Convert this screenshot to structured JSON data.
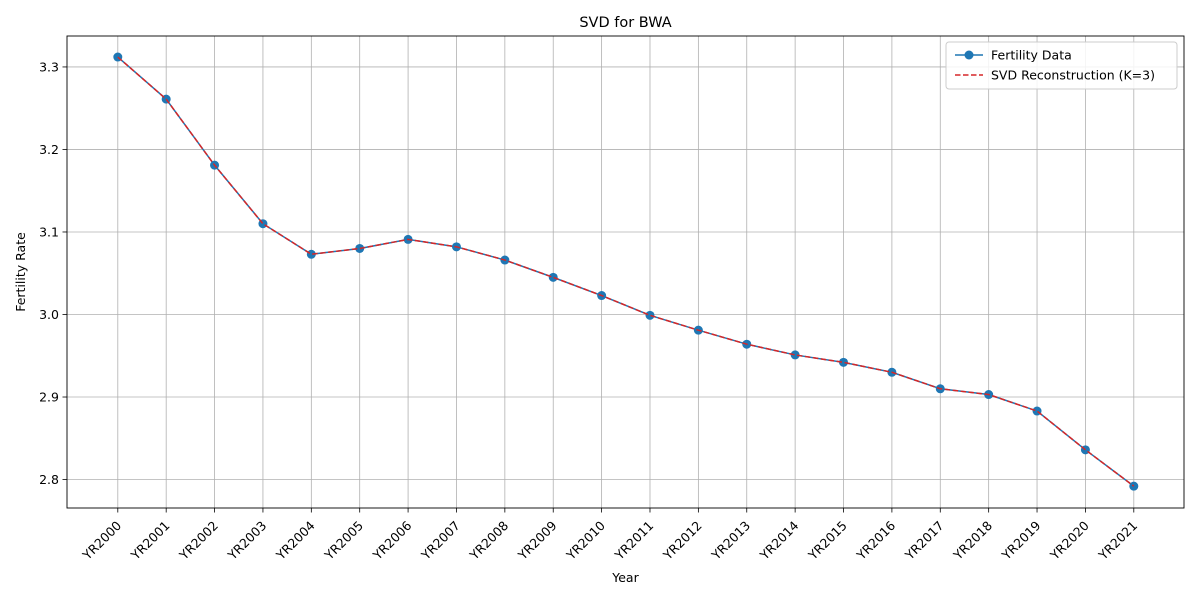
{
  "chart_data": {
    "type": "line",
    "title": "SVD for BWA",
    "xlabel": "Year",
    "ylabel": "Fertility Rate",
    "categories": [
      "YR2000",
      "YR2001",
      "YR2002",
      "YR2003",
      "YR2004",
      "YR2005",
      "YR2006",
      "YR2007",
      "YR2008",
      "YR2009",
      "YR2010",
      "YR2011",
      "YR2012",
      "YR2013",
      "YR2014",
      "YR2015",
      "YR2016",
      "YR2017",
      "YR2018",
      "YR2019",
      "YR2020",
      "YR2021"
    ],
    "ylim": [
      2.7655,
      3.3375
    ],
    "yticks": [
      2.8,
      2.9,
      3.0,
      3.1,
      3.2,
      3.3
    ],
    "grid": true,
    "legend_position": "top-right",
    "series": [
      {
        "name": "Fertility Data",
        "style": "solid-with-circle-markers",
        "color": "#1f77b4",
        "values": [
          3.312,
          3.261,
          3.181,
          3.11,
          3.073,
          3.08,
          3.091,
          3.082,
          3.066,
          3.045,
          3.023,
          2.999,
          2.981,
          2.964,
          2.951,
          2.942,
          2.93,
          2.91,
          2.903,
          2.883,
          2.836,
          2.792
        ]
      },
      {
        "name": "SVD Reconstruction (K=3)",
        "style": "dashed",
        "color": "#d62728",
        "values": [
          3.312,
          3.261,
          3.181,
          3.11,
          3.073,
          3.08,
          3.091,
          3.082,
          3.066,
          3.045,
          3.023,
          2.999,
          2.981,
          2.964,
          2.951,
          2.942,
          2.93,
          2.91,
          2.903,
          2.883,
          2.836,
          2.792
        ]
      }
    ]
  }
}
